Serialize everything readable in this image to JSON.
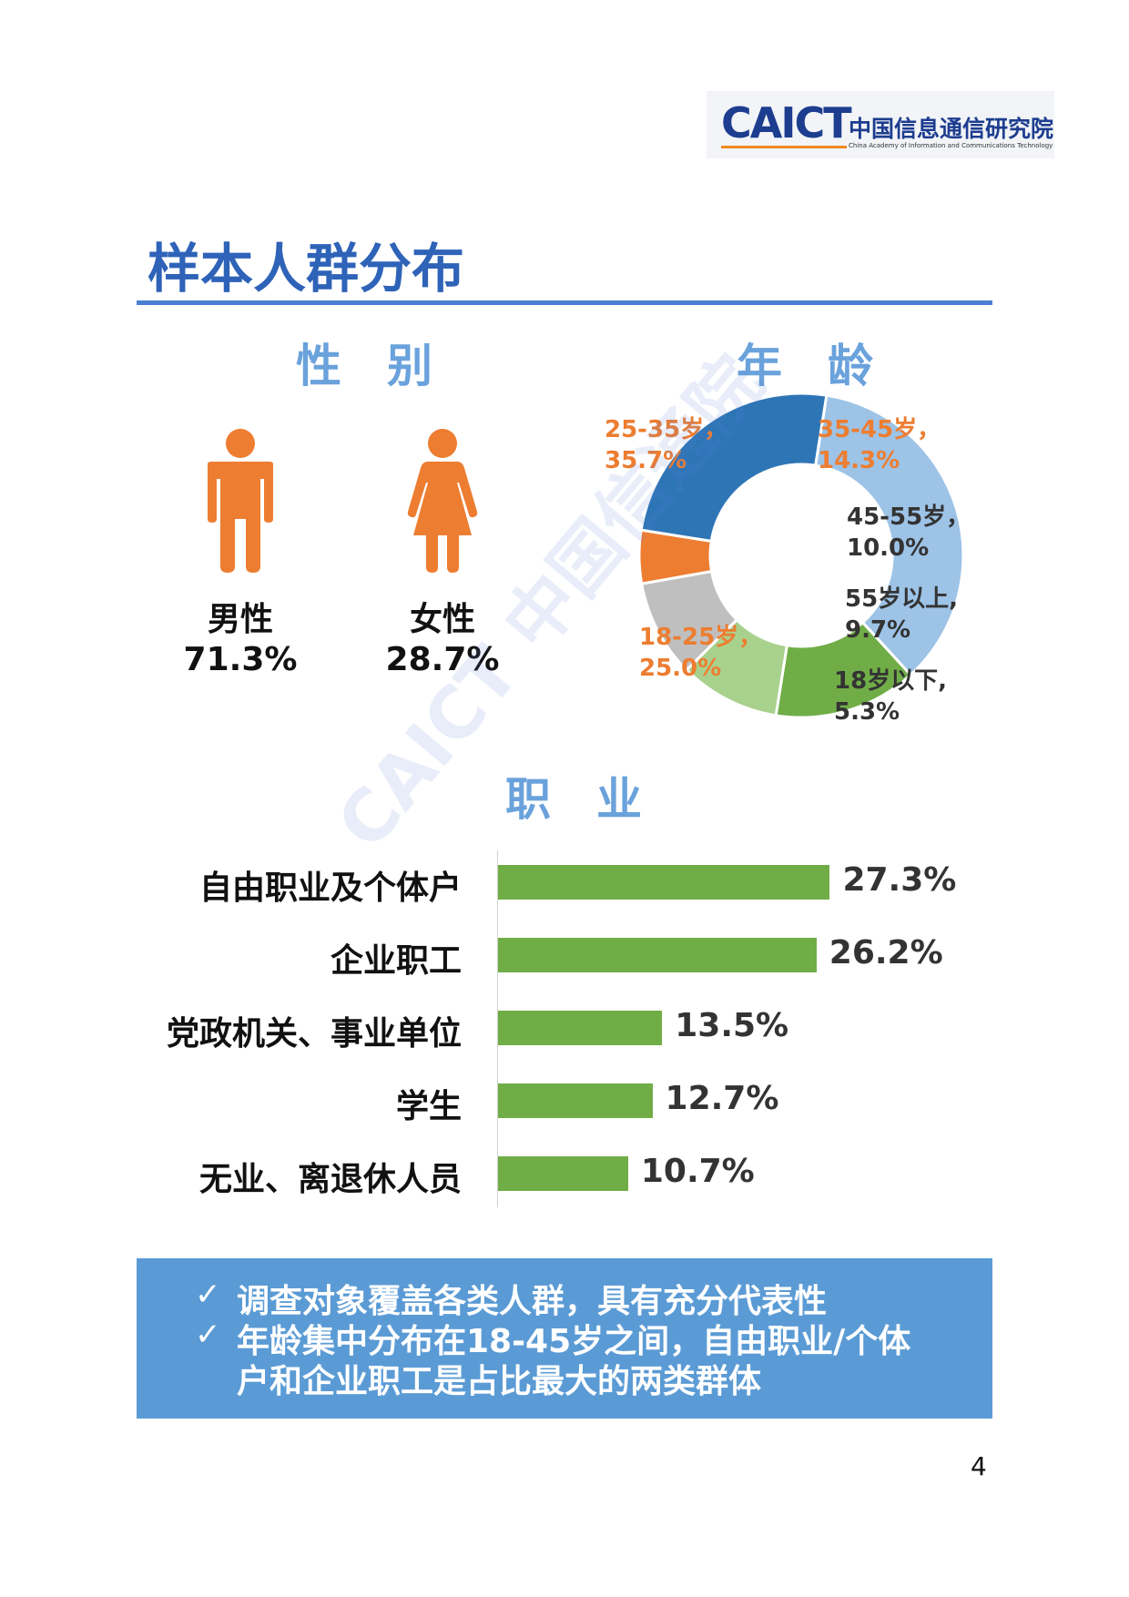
{
  "logo": {
    "brand": "CAICT",
    "name_cn": "中国信息通信研究院",
    "name_en": "China Academy of Information and Communications Technology"
  },
  "page_title": "样本人群分布",
  "sections": {
    "gender": "性　别",
    "age": "年　龄",
    "occupation": "职　业"
  },
  "colors": {
    "title_blue": "#2e63b8",
    "person_orange": "#ed7d31",
    "bar_green": "#71ad47",
    "summary_bg": "#5b9bd5"
  },
  "chart_data": [
    {
      "type": "icon-stat",
      "categories": [
        "男性",
        "女性"
      ],
      "values": [
        71.3,
        28.7
      ],
      "value_labels": [
        "71.3%",
        "28.7%"
      ]
    },
    {
      "type": "pie",
      "donut": true,
      "slices": [
        {
          "label": "25-35岁，",
          "value": 35.7,
          "value_label": "35.7%",
          "color": "#9dc3e6",
          "label_color": "#ed7d31"
        },
        {
          "label": "35-45岁，",
          "value": 14.3,
          "value_label": "14.3%",
          "color": "#70ad47",
          "label_color": "#ed7d31"
        },
        {
          "label": "45-55岁，",
          "value": 10.0,
          "value_label": "10.0%",
          "color": "#a9d18e",
          "label_color": "#333333"
        },
        {
          "label": "55岁以上,",
          "value": 9.7,
          "value_label": "9.7%",
          "color": "#bfbfbf",
          "label_color": "#333333"
        },
        {
          "label": "18岁以下,",
          "value": 5.3,
          "value_label": "5.3%",
          "color": "#ed7d31",
          "label_color": "#333333"
        },
        {
          "label": "18-25岁，",
          "value": 25.0,
          "value_label": "25.0%",
          "color": "#2e75b6",
          "label_color": "#ed7d31"
        }
      ]
    },
    {
      "type": "bar",
      "orientation": "horizontal",
      "categories": [
        "自由职业及个体户",
        "企业职工",
        "党政机关、事业单位",
        "学生",
        "无业、离退休人员"
      ],
      "values": [
        27.3,
        26.2,
        13.5,
        12.7,
        10.7
      ],
      "value_labels": [
        "27.3%",
        "26.2%",
        "13.5%",
        "12.7%",
        "10.7%"
      ]
    }
  ],
  "summary": [
    "调查对象覆盖各类人群，具有充分代表性",
    "年龄集中分布在18-45岁之间，自由职业/个体",
    "户和企业职工是占比最大的两类群体"
  ],
  "summary_bullet": "✓",
  "page_number": "4",
  "watermark": "CAICT 中国信通院"
}
